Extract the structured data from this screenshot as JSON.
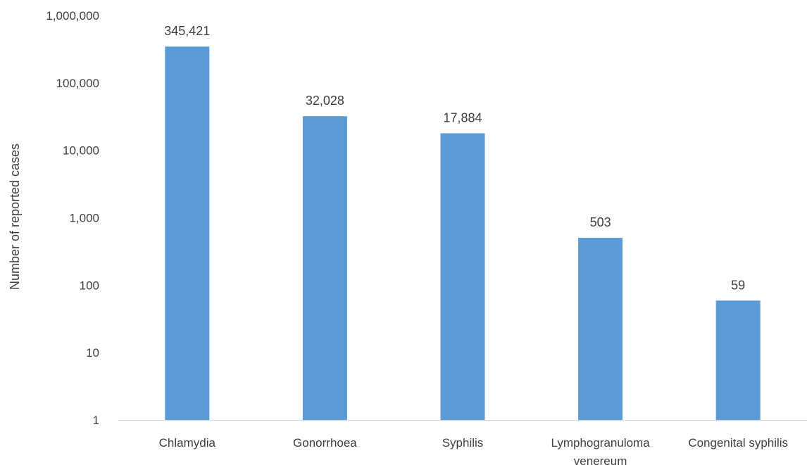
{
  "chart_data": {
    "type": "bar",
    "title": "",
    "xlabel": "",
    "ylabel": "Number of  reported cases",
    "yscale": "log",
    "ylim": [
      1,
      1000000
    ],
    "yticks": [
      1,
      10,
      100,
      1000,
      10000,
      100000,
      1000000
    ],
    "ytick_labels": [
      "1",
      "10",
      "100",
      "1,000",
      "10,000",
      "100,000",
      "1,000,000"
    ],
    "categories": [
      [
        "Chlamydia"
      ],
      [
        "Gonorrhoea"
      ],
      [
        "Syphilis"
      ],
      [
        "Lymphogranuloma",
        "venereum"
      ],
      [
        "Congenital syphilis"
      ]
    ],
    "values": [
      345421,
      32028,
      17884,
      503,
      59
    ],
    "data_labels": [
      "345,421",
      "32,028",
      "17,884",
      "503",
      "59"
    ],
    "grid": false,
    "legend": "none",
    "bar_color": "#5b9bd5",
    "axis_color": "#d9d9d9",
    "text_color": "#404040"
  }
}
